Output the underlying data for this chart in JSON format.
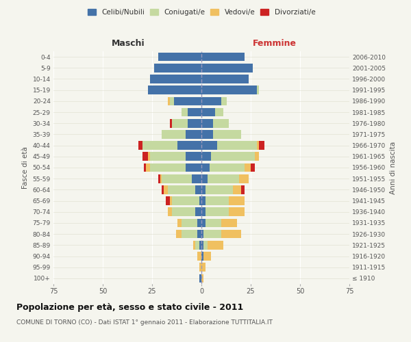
{
  "age_groups": [
    "100+",
    "95-99",
    "90-94",
    "85-89",
    "80-84",
    "75-79",
    "70-74",
    "65-69",
    "60-64",
    "55-59",
    "50-54",
    "45-49",
    "40-44",
    "35-39",
    "30-34",
    "25-29",
    "20-24",
    "15-19",
    "10-14",
    "5-9",
    "0-4"
  ],
  "birth_years": [
    "≤ 1910",
    "1911-1915",
    "1916-1920",
    "1921-1925",
    "1926-1930",
    "1931-1935",
    "1936-1940",
    "1941-1945",
    "1946-1950",
    "1951-1955",
    "1956-1960",
    "1961-1965",
    "1966-1970",
    "1971-1975",
    "1976-1980",
    "1981-1985",
    "1986-1990",
    "1991-1995",
    "1996-2000",
    "2001-2005",
    "2006-2010"
  ],
  "males": {
    "celibi": [
      1,
      0,
      0,
      1,
      2,
      2,
      3,
      1,
      3,
      5,
      8,
      8,
      12,
      8,
      7,
      7,
      14,
      27,
      26,
      24,
      22
    ],
    "coniugati": [
      0,
      0,
      0,
      2,
      8,
      8,
      12,
      14,
      14,
      15,
      18,
      18,
      18,
      12,
      8,
      3,
      2,
      0,
      0,
      0,
      0
    ],
    "vedovi": [
      0,
      1,
      2,
      1,
      3,
      2,
      2,
      1,
      2,
      1,
      2,
      1,
      0,
      0,
      0,
      0,
      1,
      0,
      0,
      0,
      0
    ],
    "divorziati": [
      0,
      0,
      0,
      0,
      0,
      0,
      0,
      2,
      1,
      1,
      1,
      3,
      2,
      0,
      1,
      0,
      0,
      0,
      0,
      0,
      0
    ]
  },
  "females": {
    "nubili": [
      0,
      0,
      1,
      1,
      1,
      2,
      2,
      2,
      2,
      3,
      4,
      5,
      8,
      6,
      6,
      7,
      10,
      28,
      24,
      26,
      22
    ],
    "coniugate": [
      0,
      0,
      0,
      2,
      9,
      8,
      12,
      12,
      14,
      16,
      18,
      22,
      20,
      14,
      8,
      4,
      3,
      1,
      0,
      0,
      0
    ],
    "vedove": [
      1,
      2,
      4,
      8,
      10,
      8,
      8,
      8,
      4,
      5,
      3,
      2,
      1,
      0,
      0,
      0,
      0,
      0,
      0,
      0,
      0
    ],
    "divorziate": [
      0,
      0,
      0,
      0,
      0,
      0,
      0,
      0,
      2,
      0,
      2,
      0,
      3,
      0,
      0,
      0,
      0,
      0,
      0,
      0,
      0
    ]
  },
  "colors": {
    "celibi": "#4472a8",
    "coniugati": "#c5d9a0",
    "vedovi": "#f0c060",
    "divorziati": "#cc2222"
  },
  "xlim": 75,
  "title": "Popolazione per età, sesso e stato civile - 2011",
  "subtitle": "COMUNE DI TORNO (CO) - Dati ISTAT 1° gennaio 2011 - Elaborazione TUTTITALIA.IT",
  "ylabel_left": "Fasce di età",
  "ylabel_right": "Anni di nascita",
  "xlabel_left": "Maschi",
  "xlabel_right": "Femmine",
  "legend_labels": [
    "Celibi/Nubili",
    "Coniugati/e",
    "Vedovi/e",
    "Divorziati/e"
  ],
  "background_color": "#f5f5ee"
}
